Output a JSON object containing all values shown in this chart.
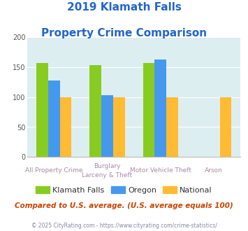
{
  "title_line1": "2019 Klamath Falls",
  "title_line2": "Property Crime Comparison",
  "cat_labels_line1": [
    "All Property Crime",
    "Burglary",
    "Motor Vehicle Theft",
    "Arson"
  ],
  "cat_labels_line2": [
    "",
    "Larceny & Theft",
    "",
    ""
  ],
  "klamath_falls": [
    157,
    153,
    157,
    null
  ],
  "oregon": [
    128,
    103,
    163,
    null
  ],
  "national": [
    100,
    100,
    100,
    100
  ],
  "color_klamath": "#88cc22",
  "color_oregon": "#4499ee",
  "color_national": "#ffbb33",
  "legend_labels": [
    "Klamath Falls",
    "Oregon",
    "National"
  ],
  "subtitle": "Compared to U.S. average. (U.S. average equals 100)",
  "footer": "© 2025 CityRating.com - https://www.cityrating.com/crime-statistics/",
  "ylim": [
    0,
    200
  ],
  "yticks": [
    0,
    50,
    100,
    150,
    200
  ],
  "title_color": "#2266cc",
  "subtitle_color": "#cc4400",
  "footer_color": "#8888aa",
  "label_color": "#aa88aa",
  "bg_color": "#ddeef0",
  "bar_width": 0.22
}
